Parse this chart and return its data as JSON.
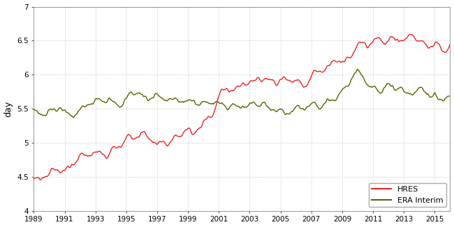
{
  "title": "",
  "ylabel": "day",
  "xlim": [
    1989,
    2016
  ],
  "ylim": [
    4,
    7
  ],
  "yticks": [
    4,
    4.5,
    5,
    5.5,
    6,
    6.5,
    7
  ],
  "xticks": [
    1989,
    1991,
    1993,
    1995,
    1997,
    1999,
    2001,
    2003,
    2005,
    2007,
    2009,
    2011,
    2013,
    2015
  ],
  "hres_color": "#EE2222",
  "era_color": "#556600",
  "background_color": "#FFFFFF",
  "grid_color": "#BBBBBB",
  "legend_labels": [
    "HRES",
    "ERA Interim"
  ],
  "linewidth": 1.0
}
